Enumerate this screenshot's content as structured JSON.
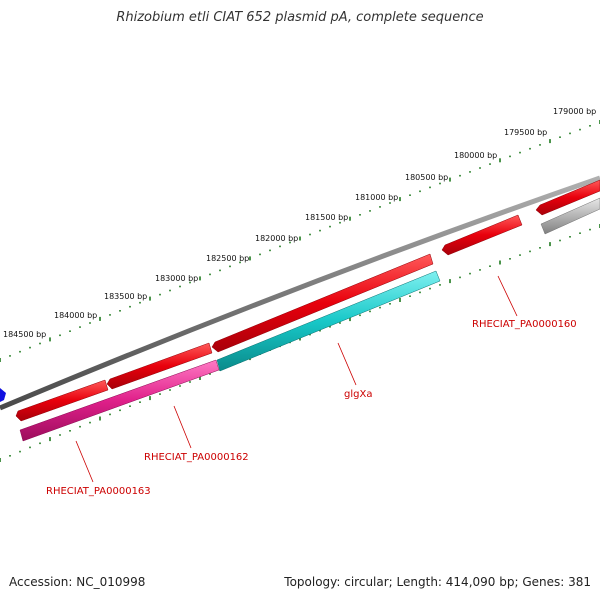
{
  "title": "Rhizobium etli CIAT 652 plasmid pA, complete sequence",
  "footer": {
    "accession": "Accession: NC_010998",
    "summary": "Topology: circular; Length: 414,090 bp; Genes: 381"
  },
  "colors": {
    "backbone": "#7a7a7a",
    "tick": "#1e7a1e",
    "gene_red": "#e8000c",
    "gene_cyan": "#18c8c8",
    "gene_magenta": "#e0208a",
    "gene_gray": "#b4b4b4",
    "gene_blue": "#1010e0",
    "label": "#cc0000"
  },
  "scale_labels": [
    "179000 bp",
    "179500 bp",
    "180000 bp",
    "180500 bp",
    "181000 bp",
    "181500 bp",
    "182000 bp",
    "182500 bp",
    "183000 bp",
    "183500 bp",
    "184000 bp",
    "184500 bp"
  ],
  "gene_labels": [
    "RHECIAT_PA0000160",
    "glgXa",
    "RHECIAT_PA0000162",
    "RHECIAT_PA0000163"
  ]
}
